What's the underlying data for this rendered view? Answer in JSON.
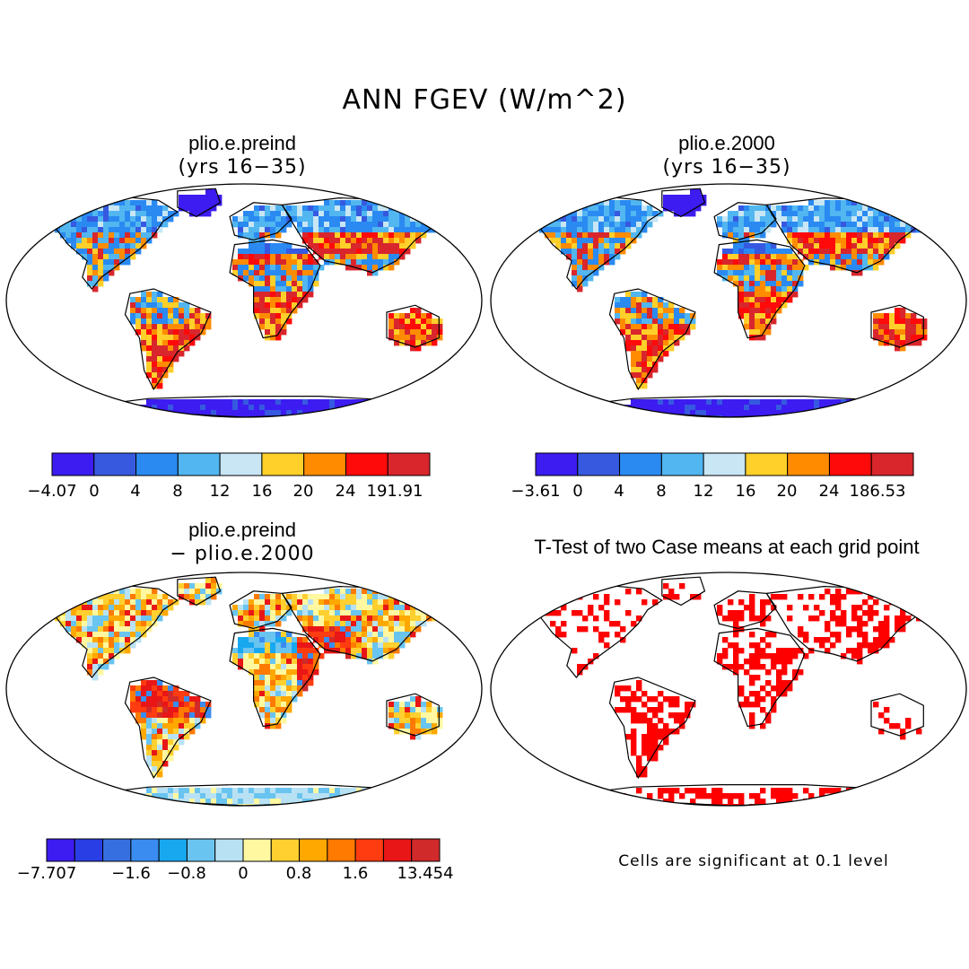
{
  "figure": {
    "title": "ANN FGEV (W/m^2)"
  },
  "panels": [
    {
      "id": "p1",
      "title": "plio.e.preind",
      "subtitle": "(yrs 16−35)",
      "type": "field",
      "colorbar": {
        "colors": [
          "#3c1cf0",
          "#3659e0",
          "#2a8af2",
          "#52b6f0",
          "#c8e6f4",
          "#ffcf2a",
          "#ff8c00",
          "#ff0a0a",
          "#d8262c"
        ],
        "labels": [
          "−4.07",
          "0",
          "4",
          "8",
          "12",
          "16",
          "20",
          "24",
          "191.91"
        ]
      }
    },
    {
      "id": "p2",
      "title": "plio.e.2000",
      "subtitle": "(yrs 16−35)",
      "type": "field",
      "colorbar": {
        "colors": [
          "#3c1cf0",
          "#3659e0",
          "#2a8af2",
          "#52b6f0",
          "#c8e6f4",
          "#ffcf2a",
          "#ff8c00",
          "#ff0a0a",
          "#d8262c"
        ],
        "labels": [
          "−3.61",
          "0",
          "4",
          "8",
          "12",
          "16",
          "20",
          "24",
          "186.53"
        ]
      }
    },
    {
      "id": "p3",
      "title": "plio.e.preind",
      "subtitle": "− plio.e.2000",
      "type": "difference",
      "colorbar": {
        "colors": [
          "#3c1cf0",
          "#2a3ee6",
          "#3670e0",
          "#3a8cf0",
          "#18a8f0",
          "#6ac4f0",
          "#b8e2f4",
          "#fff8a0",
          "#ffd030",
          "#ffa800",
          "#ff7a00",
          "#ff3c10",
          "#e81616",
          "#d02a2a"
        ],
        "labels": [
          "−7.707",
          "−1.6",
          "−0.8",
          "0",
          "0.8",
          "1.6",
          "13.454"
        ]
      }
    },
    {
      "id": "p4",
      "title": "T-Test of two Case means at each grid point",
      "type": "significance",
      "note": "Cells are significant at 0.1 level"
    }
  ]
}
